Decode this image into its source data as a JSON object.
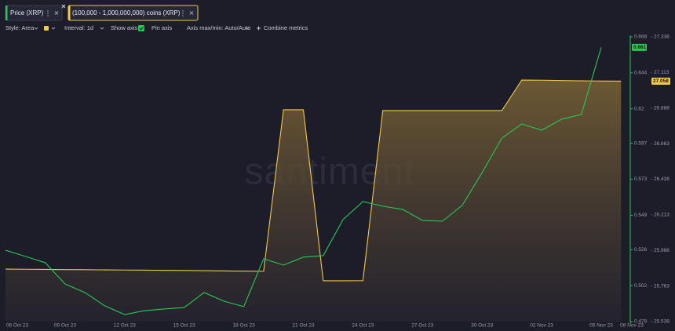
{
  "toolbar": {
    "style": "Style: Area",
    "interval": "Interval: 1d",
    "show_axis": "Show axis",
    "pin_axis": "Pin axis",
    "axis_minmax": "Axis max/min: Auto/Auto",
    "combine": "Combine metrics"
  },
  "watermark": "santiment",
  "chart_data": {
    "type": "line",
    "categories": [
      "06 Oct 23",
      null,
      null,
      "09 Oct 23",
      null,
      null,
      "12 Oct 23",
      null,
      null,
      "15 Oct 23",
      null,
      null,
      "18 Oct 23",
      null,
      null,
      "21 Oct 23",
      null,
      null,
      "24 Oct 23",
      null,
      null,
      "27 Oct 23",
      null,
      null,
      "30 Oct 23",
      null,
      null,
      "02 Nov 23",
      null,
      null,
      "05 Nov 23",
      null,
      null,
      "08 Nov 23"
    ],
    "series": [
      {
        "name": "Price (XRP)",
        "type": "line",
        "color": "#26c953",
        "values": [
          0.5256,
          0.5215,
          0.5173,
          0.5031,
          0.4974,
          0.4885,
          0.4827,
          0.4853,
          0.4864,
          0.4874,
          0.4974,
          0.4916,
          0.488,
          0.5199,
          0.5157,
          0.521,
          0.522,
          0.5461,
          0.5581,
          0.555,
          0.5529,
          0.5455,
          0.545,
          0.5555,
          0.5774,
          0.6005,
          0.6099,
          0.6057,
          0.613,
          0.6162,
          0.661,
          null,
          null,
          null
        ]
      },
      {
        "name": "(100,000 - 1,000,000,000) coins (XRP)",
        "type": "area",
        "axis": "y2",
        "color": "#f3c94a",
        "values": [
          25.87,
          25.869,
          25.868,
          25.867,
          25.866,
          25.865,
          25.864,
          25.863,
          25.862,
          25.861,
          25.86,
          25.858,
          25.857,
          25.856,
          26.877,
          26.877,
          25.796,
          25.796,
          25.797,
          26.872,
          26.872,
          26.872,
          26.872,
          26.872,
          26.872,
          26.872,
          27.065,
          27.064,
          27.062,
          27.06,
          27.059,
          27.058,
          null,
          null
        ]
      }
    ],
    "ylim": [
      0.478,
      0.668
    ],
    "yticks": [
      0.478,
      0.502,
      0.526,
      0.549,
      0.573,
      0.597,
      0.62,
      0.644,
      0.668
    ],
    "y2lim": [
      25.538,
      27.338
    ],
    "y2ticks": [
      25.538,
      25.763,
      25.988,
      26.213,
      26.438,
      26.663,
      26.888,
      27.113,
      27.338
    ],
    "grid": false
  }
}
